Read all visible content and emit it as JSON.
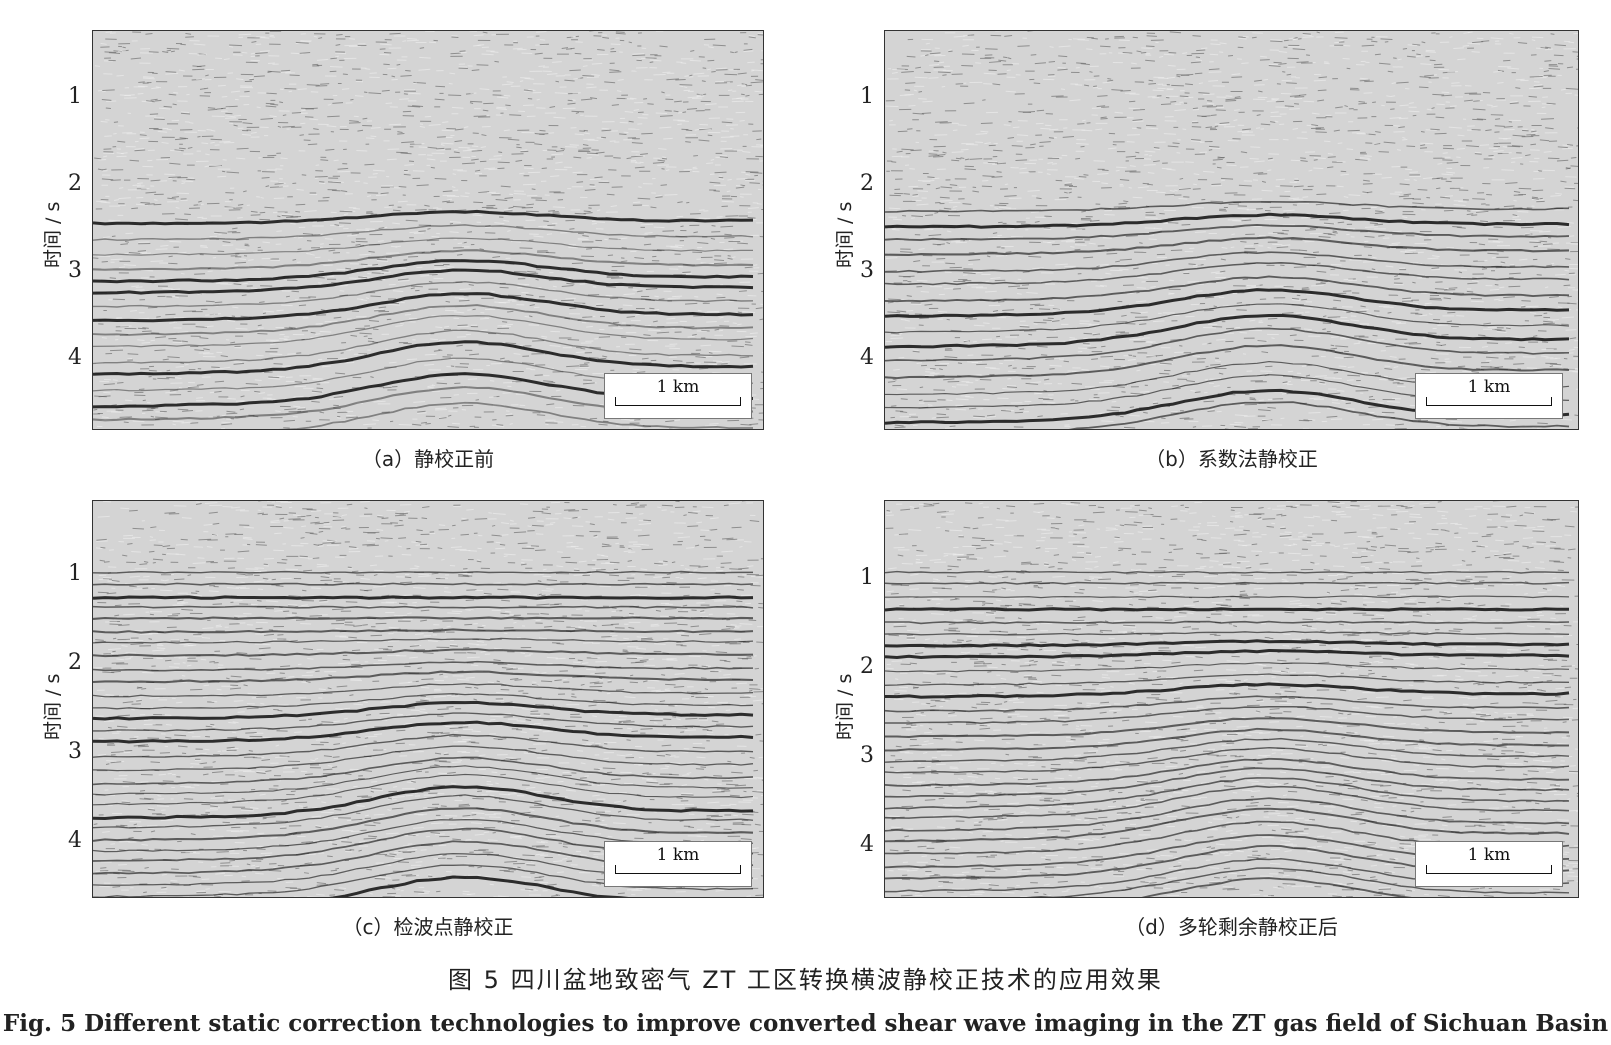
{
  "figure": {
    "title_cn": "图 5   四川盆地致密气 ZT 工区转换横波静校正技术的应用效果",
    "title_en": "Fig. 5   Different static correction technologies to improve converted shear wave imaging in the ZT gas field of Sichuan Basin"
  },
  "panels": [
    {
      "id": "a",
      "caption": "（a）静校正前",
      "ylabel": "时间 / s",
      "yticks": [
        "1",
        "2",
        "3",
        "4"
      ],
      "scale_label": "1 km"
    },
    {
      "id": "b",
      "caption": "（b）系数法静校正",
      "ylabel": "时间 / s",
      "yticks": [
        "1",
        "2",
        "3",
        "4"
      ],
      "scale_label": "1 km"
    },
    {
      "id": "c",
      "caption": "（c）检波点静校正",
      "ylabel": "时间 / s",
      "yticks": [
        "1",
        "2",
        "3",
        "4"
      ],
      "scale_label": "1 km"
    },
    {
      "id": "d",
      "caption": "（d）多轮剩余静校正后",
      "ylabel": "时间 / s",
      "yticks": [
        "1",
        "2",
        "3",
        "4"
      ],
      "scale_label": "1 km"
    }
  ],
  "colors": {
    "background": "#d4d4d4",
    "reflector": "#1a1a1a",
    "border": "#333333"
  }
}
